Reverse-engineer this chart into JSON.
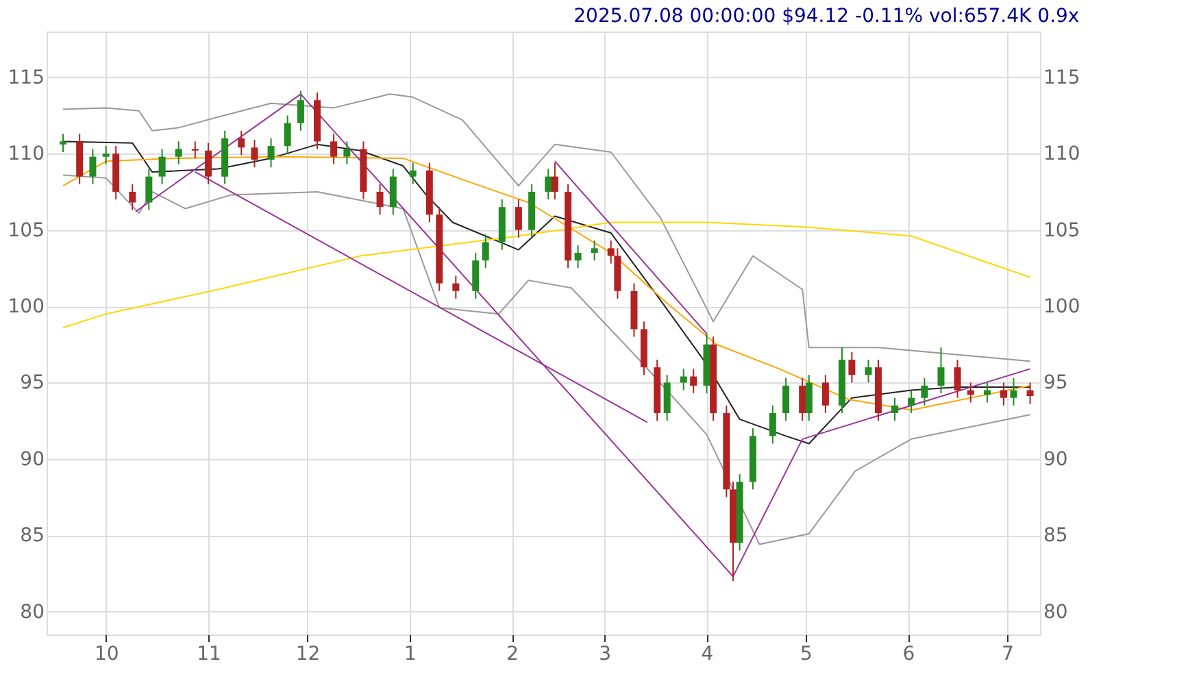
{
  "chart_data": {
    "type": "candlestick",
    "title": "2025.07.08 00:00:00 $94.12 -0.11% vol:657.4K 0.9x",
    "x": [
      "2024-09-18",
      "2024-09-23",
      "2024-09-27",
      "2024-10-01",
      "2024-10-04",
      "2024-10-09",
      "2024-10-14",
      "2024-10-18",
      "2024-10-23",
      "2024-10-28",
      "2024-11-01",
      "2024-11-06",
      "2024-11-11",
      "2024-11-15",
      "2024-11-20",
      "2024-11-25",
      "2024-11-29",
      "2024-12-04",
      "2024-12-09",
      "2024-12-13",
      "2024-12-18",
      "2024-12-23",
      "2024-12-27",
      "2025-01-02",
      "2025-01-07",
      "2025-01-10",
      "2025-01-15",
      "2025-01-21",
      "2025-01-24",
      "2025-01-29",
      "2025-02-03",
      "2025-02-07",
      "2025-02-12",
      "2025-02-14",
      "2025-02-18",
      "2025-02-21",
      "2025-02-26",
      "2025-03-03",
      "2025-03-05",
      "2025-03-10",
      "2025-03-13",
      "2025-03-17",
      "2025-03-20",
      "2025-03-25",
      "2025-03-28",
      "2025-04-01",
      "2025-04-03",
      "2025-04-07",
      "2025-04-09",
      "2025-04-11",
      "2025-04-15",
      "2025-04-21",
      "2025-04-25",
      "2025-04-30",
      "2025-05-02",
      "2025-05-07",
      "2025-05-12",
      "2025-05-15",
      "2025-05-20",
      "2025-05-23",
      "2025-05-28",
      "2025-06-02",
      "2025-06-06",
      "2025-06-11",
      "2025-06-16",
      "2025-06-20",
      "2025-06-25",
      "2025-06-30",
      "2025-07-03",
      "2025-07-08"
    ],
    "ohlc": [
      [
        110.6,
        111.3,
        110.1,
        110.8
      ],
      [
        110.8,
        111.3,
        108.0,
        108.5
      ],
      [
        108.5,
        110.3,
        108.0,
        109.8
      ],
      [
        109.8,
        110.5,
        109.3,
        110.0
      ],
      [
        110.0,
        110.5,
        107.0,
        107.5
      ],
      [
        107.5,
        108.0,
        106.3,
        106.8
      ],
      [
        106.8,
        109.0,
        106.3,
        108.5
      ],
      [
        108.5,
        110.3,
        108.0,
        109.8
      ],
      [
        109.8,
        110.8,
        109.3,
        110.3
      ],
      [
        110.3,
        110.8,
        109.7,
        110.2
      ],
      [
        110.2,
        110.7,
        108.0,
        108.5
      ],
      [
        108.5,
        111.5,
        108.0,
        111.0
      ],
      [
        111.0,
        111.5,
        109.9,
        110.4
      ],
      [
        110.4,
        110.9,
        109.1,
        109.6
      ],
      [
        109.6,
        111.0,
        109.1,
        110.5
      ],
      [
        110.5,
        112.5,
        110.0,
        112.0
      ],
      [
        112.0,
        114.1,
        111.5,
        113.5
      ],
      [
        113.5,
        114.0,
        110.3,
        110.8
      ],
      [
        110.8,
        111.3,
        109.3,
        109.8
      ],
      [
        109.8,
        110.8,
        109.3,
        110.3
      ],
      [
        110.3,
        110.8,
        107.0,
        107.5
      ],
      [
        107.5,
        108.0,
        106.0,
        106.5
      ],
      [
        106.5,
        109.0,
        106.0,
        108.5
      ],
      [
        108.5,
        109.4,
        108.0,
        108.9
      ],
      [
        108.9,
        109.4,
        105.5,
        106.0
      ],
      [
        106.0,
        106.5,
        101.0,
        101.5
      ],
      [
        101.5,
        102.0,
        100.5,
        101.0
      ],
      [
        101.0,
        103.5,
        100.5,
        103.0
      ],
      [
        103.0,
        104.7,
        102.5,
        104.2
      ],
      [
        104.2,
        107.0,
        103.7,
        106.5
      ],
      [
        106.5,
        107.0,
        104.5,
        105.0
      ],
      [
        105.0,
        108.0,
        104.5,
        107.5
      ],
      [
        107.5,
        109.0,
        107.0,
        108.5
      ],
      [
        108.5,
        109.4,
        107.0,
        107.5
      ],
      [
        107.5,
        108.0,
        102.5,
        103.0
      ],
      [
        103.0,
        104.0,
        102.5,
        103.5
      ],
      [
        103.5,
        104.3,
        103.0,
        103.8
      ],
      [
        103.8,
        104.3,
        102.8,
        103.3
      ],
      [
        103.3,
        103.8,
        100.5,
        101.0
      ],
      [
        101.0,
        101.5,
        98.0,
        98.5
      ],
      [
        98.5,
        99.0,
        95.5,
        96.0
      ],
      [
        96.0,
        96.5,
        92.5,
        93.0
      ],
      [
        93.0,
        95.5,
        92.5,
        95.0
      ],
      [
        95.0,
        95.9,
        94.5,
        95.4
      ],
      [
        95.4,
        95.9,
        94.3,
        94.8
      ],
      [
        94.8,
        98.2,
        94.3,
        97.5
      ],
      [
        97.5,
        98.0,
        92.5,
        93.0
      ],
      [
        93.0,
        93.5,
        87.5,
        88.0
      ],
      [
        88.0,
        88.5,
        82.0,
        84.5
      ],
      [
        84.5,
        89.0,
        84.0,
        88.5
      ],
      [
        88.5,
        92.0,
        88.0,
        91.5
      ],
      [
        91.5,
        93.5,
        91.0,
        93.0
      ],
      [
        93.0,
        95.3,
        92.5,
        94.8
      ],
      [
        94.8,
        95.3,
        92.5,
        93.0
      ],
      [
        93.0,
        95.5,
        92.5,
        95.0
      ],
      [
        95.0,
        95.5,
        93.0,
        93.5
      ],
      [
        93.5,
        97.3,
        93.0,
        96.5
      ],
      [
        96.5,
        97.0,
        95.0,
        95.5
      ],
      [
        95.5,
        96.5,
        95.0,
        96.0
      ],
      [
        96.0,
        96.5,
        92.5,
        93.0
      ],
      [
        93.0,
        94.0,
        92.5,
        93.5
      ],
      [
        93.5,
        94.5,
        93.0,
        94.0
      ],
      [
        94.0,
        95.3,
        93.5,
        94.8
      ],
      [
        94.8,
        97.3,
        94.3,
        96.0
      ],
      [
        96.0,
        96.5,
        94.0,
        94.5
      ],
      [
        94.5,
        95.0,
        93.7,
        94.2
      ],
      [
        94.2,
        95.0,
        93.7,
        94.5
      ],
      [
        94.5,
        95.0,
        93.5,
        94.0
      ],
      [
        94.0,
        95.3,
        93.5,
        94.5
      ],
      [
        94.5,
        95.0,
        93.6,
        94.12
      ]
    ],
    "colors": [
      "#228b22",
      "#b22222",
      "#228b22",
      "#228b22",
      "#b22222",
      "#b22222",
      "#228b22",
      "#228b22",
      "#228b22",
      "#b22222",
      "#b22222",
      "#228b22",
      "#b22222",
      "#b22222",
      "#228b22",
      "#228b22",
      "#228b22",
      "#b22222",
      "#b22222",
      "#228b22",
      "#b22222",
      "#b22222",
      "#228b22",
      "#228b22",
      "#b22222",
      "#b22222",
      "#b22222",
      "#228b22",
      "#228b22",
      "#228b22",
      "#b22222",
      "#228b22",
      "#228b22",
      "#b22222",
      "#b22222",
      "#228b22",
      "#228b22",
      "#b22222",
      "#b22222",
      "#b22222",
      "#b22222",
      "#b22222",
      "#228b22",
      "#228b22",
      "#b22222",
      "#228b22",
      "#b22222",
      "#b22222",
      "#b22222",
      "#228b22",
      "#228b22",
      "#228b22",
      "#228b22",
      "#b22222",
      "#228b22",
      "#b22222",
      "#228b22",
      "#b22222",
      "#228b22",
      "#b22222",
      "#228b22",
      "#228b22",
      "#228b22",
      "#228b22",
      "#b22222",
      "#b22222",
      "#228b22",
      "#b22222",
      "#228b22",
      "#b22222"
    ],
    "series": [
      {
        "type": "line",
        "color": "#999999",
        "x": [
          "2024-09-18",
          "2024-10-01",
          "2024-10-11",
          "2024-10-15",
          "2024-10-23",
          "2024-11-04",
          "2024-11-20",
          "2024-12-09",
          "2024-12-26",
          "2025-01-02",
          "2025-01-17",
          "2025-02-03",
          "2025-02-14",
          "2025-03-03",
          "2025-03-18",
          "2025-04-03",
          "2025-04-15",
          "2025-04-30",
          "2025-05-02",
          "2025-05-23",
          "2025-07-08"
        ],
        "values": [
          112.9,
          113.0,
          112.8,
          111.5,
          111.7,
          112.4,
          113.3,
          113.0,
          113.9,
          113.7,
          112.2,
          107.9,
          110.6,
          110.1,
          105.8,
          99.0,
          103.3,
          101.1,
          97.3,
          97.3,
          96.4
        ]
      },
      {
        "type": "line",
        "color": "#999999",
        "x": [
          "2024-09-18",
          "2024-10-01",
          "2024-10-11",
          "2024-10-15",
          "2024-10-25",
          "2024-11-08",
          "2024-12-04",
          "2024-12-30",
          "2025-01-10",
          "2025-01-28",
          "2025-02-06",
          "2025-02-19",
          "2025-03-12",
          "2025-04-01",
          "2025-04-17",
          "2025-05-02",
          "2025-05-16",
          "2025-06-02",
          "2025-07-08"
        ],
        "values": [
          108.6,
          108.4,
          106.1,
          107.5,
          106.4,
          107.3,
          107.5,
          106.4,
          99.9,
          99.5,
          101.7,
          101.2,
          96.4,
          91.6,
          84.4,
          85.1,
          89.2,
          91.3,
          92.9
        ]
      },
      {
        "type": "line",
        "color": "#222222",
        "x": [
          "2024-09-18",
          "2024-10-09",
          "2024-10-15",
          "2024-11-04",
          "2024-11-20",
          "2024-12-04",
          "2024-12-17",
          "2024-12-30",
          "2025-01-06",
          "2025-01-14",
          "2025-02-03",
          "2025-02-14",
          "2025-03-03",
          "2025-03-18",
          "2025-04-01",
          "2025-04-11",
          "2025-04-25",
          "2025-05-02",
          "2025-05-15",
          "2025-06-02",
          "2025-06-16",
          "2025-07-08"
        ],
        "values": [
          110.8,
          110.7,
          108.8,
          109.0,
          109.7,
          110.6,
          110.2,
          109.2,
          107.3,
          105.5,
          103.7,
          105.9,
          104.8,
          100.4,
          96.2,
          92.6,
          91.5,
          91.0,
          94.0,
          94.5,
          94.7,
          94.7
        ]
      },
      {
        "type": "line",
        "color": "#ffa500",
        "x": [
          "2024-09-18",
          "2024-10-01",
          "2024-10-23",
          "2024-11-22",
          "2024-12-30",
          "2025-01-17",
          "2025-02-06",
          "2025-03-03",
          "2025-03-20",
          "2025-04-04",
          "2025-04-23",
          "2025-05-14",
          "2025-06-02",
          "2025-07-08"
        ],
        "values": [
          107.9,
          109.5,
          109.7,
          109.8,
          109.7,
          108.3,
          106.8,
          103.5,
          100.2,
          97.5,
          95.9,
          93.9,
          93.2,
          94.8
        ]
      },
      {
        "type": "line",
        "color": "#ffd700",
        "x": [
          "2024-09-18",
          "2024-10-01",
          "2024-11-04",
          "2024-12-17",
          "2025-02-03",
          "2025-03-03",
          "2025-04-01",
          "2025-05-01",
          "2025-06-02",
          "2025-07-08"
        ],
        "values": [
          98.6,
          99.5,
          101.1,
          103.3,
          104.6,
          105.5,
          105.5,
          105.2,
          104.6,
          101.9
        ]
      },
      {
        "type": "line",
        "color": "#993399",
        "x": [
          "2024-10-10",
          "2024-11-29",
          "2025-04-09"
        ],
        "values": [
          106.2,
          113.9,
          82.3
        ]
      },
      {
        "type": "line",
        "color": "#993399",
        "x": [
          "2024-10-28",
          "2025-03-14"
        ],
        "values": [
          108.8,
          92.4
        ]
      },
      {
        "type": "line",
        "color": "#993399",
        "x": [
          "2025-02-14",
          "2025-04-01"
        ],
        "values": [
          109.5,
          98.2
        ]
      },
      {
        "type": "line",
        "color": "#993399",
        "x": [
          "2025-04-09",
          "2025-04-30",
          "2025-07-08"
        ],
        "values": [
          82.3,
          91.3,
          95.9
        ]
      }
    ],
    "xlim": [
      "2024-09-13",
      "2025-07-11"
    ],
    "xticks": [
      {
        "value": "2024-10-01",
        "label": "10"
      },
      {
        "value": "2024-11-01",
        "label": "11"
      },
      {
        "value": "2024-12-01",
        "label": "12"
      },
      {
        "value": "2025-01-01",
        "label": "1"
      },
      {
        "value": "2025-02-01",
        "label": "2"
      },
      {
        "value": "2025-03-01",
        "label": "3"
      },
      {
        "value": "2025-04-01",
        "label": "4"
      },
      {
        "value": "2025-05-01",
        "label": "5"
      },
      {
        "value": "2025-06-01",
        "label": "6"
      },
      {
        "value": "2025-07-01",
        "label": "7"
      }
    ],
    "ylim": [
      78.5,
      118
    ],
    "yticks": [
      80,
      85,
      90,
      95,
      100,
      105,
      110,
      115
    ],
    "y2lim": [
      78.5,
      118
    ],
    "y2ticks": [
      80,
      85,
      90,
      95,
      100,
      105,
      110,
      115
    ],
    "grid": true
  }
}
